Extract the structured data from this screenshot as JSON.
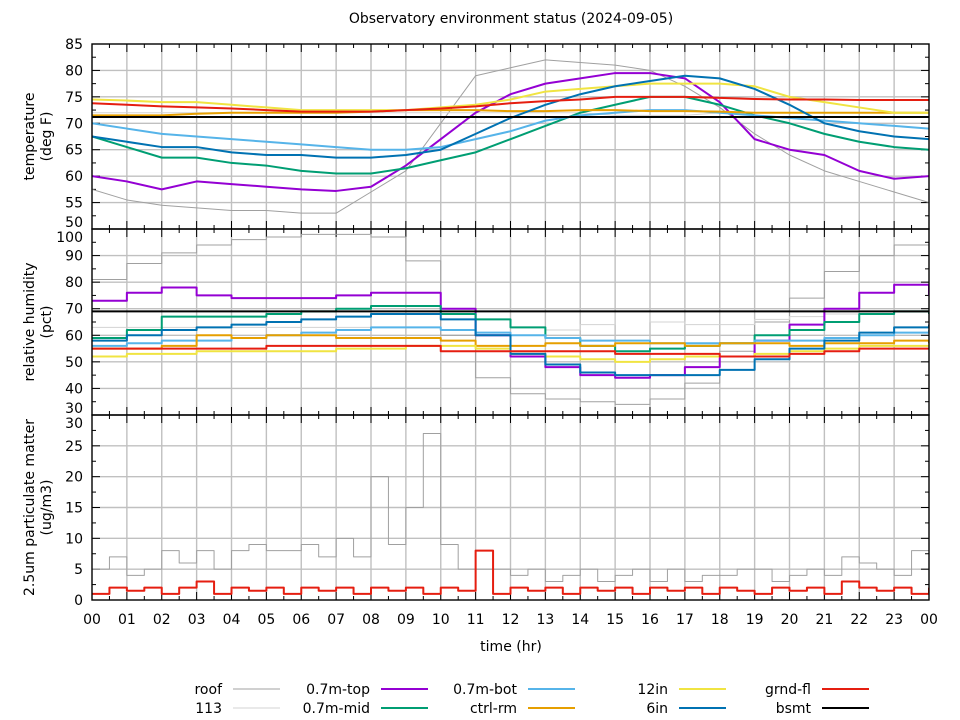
{
  "chart_data": {
    "type": "line",
    "title": "Observatory environment status (2024-09-05)",
    "xlabel": "time (hr)",
    "x_ticks": [
      "00",
      "01",
      "02",
      "03",
      "04",
      "05",
      "06",
      "07",
      "08",
      "09",
      "10",
      "11",
      "12",
      "13",
      "14",
      "15",
      "16",
      "17",
      "18",
      "19",
      "20",
      "21",
      "22",
      "23",
      "00"
    ],
    "x_range": [
      0,
      24
    ],
    "grid": true,
    "legend_position": "bottom",
    "legend": [
      {
        "name": "roof",
        "color": "#a0a0a0"
      },
      {
        "name": "113",
        "color": "#d3d3d3"
      },
      {
        "name": "0.7m-top",
        "color": "#9400d3"
      },
      {
        "name": "0.7m-mid",
        "color": "#009e73"
      },
      {
        "name": "0.7m-bot",
        "color": "#56b4e9"
      },
      {
        "name": "ctrl-rm",
        "color": "#e69f00"
      },
      {
        "name": "12in",
        "color": "#f0e442"
      },
      {
        "name": "6in",
        "color": "#0072b2"
      },
      {
        "name": "grnd-fl",
        "color": "#e51e10"
      },
      {
        "name": "bsmt",
        "color": "#000000"
      }
    ],
    "panels": [
      {
        "ylabel_line1": "temperature",
        "ylabel_line2": "(deg F)",
        "ylim": [
          50,
          85
        ],
        "y_ticks": [
          "50",
          "55",
          "60",
          "65",
          "70",
          "75",
          "80",
          "85"
        ],
        "x": [
          0,
          1,
          2,
          3,
          4,
          5,
          6,
          7,
          8,
          9,
          10,
          11,
          12,
          13,
          14,
          15,
          16,
          17,
          18,
          19,
          20,
          21,
          22,
          23,
          24
        ],
        "series": [
          {
            "name": "roof",
            "values": [
              57.5,
              55.5,
              54.5,
              54,
              53.5,
              53.5,
              53,
              53,
              57,
              61,
              70,
              79,
              80.5,
              82,
              81.5,
              81,
              80,
              77,
              73,
              68,
              64,
              61,
              59,
              57,
              55
            ]
          },
          {
            "name": "113",
            "values": [
              72,
              72,
              72,
              72,
              72,
              72,
              72,
              72,
              72,
              72,
              72,
              72,
              72,
              72,
              72,
              71.5,
              71.5,
              71.5,
              72,
              72,
              72,
              72,
              72,
              72,
              72
            ]
          },
          {
            "name": "0.7m-top",
            "values": [
              60,
              59,
              57.5,
              59,
              58.5,
              58,
              57.5,
              57.2,
              58,
              62,
              67,
              72,
              75.5,
              77.5,
              78.5,
              79.5,
              79.5,
              78.5,
              74,
              67,
              65,
              64,
              61,
              59.5,
              60
            ]
          },
          {
            "name": "0.7m-mid",
            "values": [
              67.5,
              65.5,
              63.5,
              63.5,
              62.5,
              62,
              61,
              60.5,
              60.5,
              61.5,
              63,
              64.5,
              67,
              69.5,
              72,
              73.5,
              75,
              75,
              73.5,
              71.5,
              70,
              68,
              66.5,
              65.5,
              65
            ]
          },
          {
            "name": "0.7m-bot",
            "values": [
              70,
              69,
              68,
              67.5,
              67,
              66.5,
              66,
              65.5,
              65,
              65,
              65.5,
              67,
              68.5,
              70.5,
              71.5,
              72,
              72.5,
              72.5,
              72,
              71.5,
              71,
              70.5,
              70,
              69.5,
              69
            ]
          },
          {
            "name": "ctrl-rm",
            "values": [
              71.5,
              71.5,
              71.5,
              71.8,
              72,
              72,
              72,
              72,
              72.2,
              72.5,
              72.5,
              72.5,
              72.3,
              72.3,
              72.5,
              72.5,
              72.3,
              72.3,
              72.2,
              72,
              72,
              72,
              72,
              72,
              72
            ]
          },
          {
            "name": "12in",
            "values": [
              74.5,
              74.3,
              74,
              74,
              73.5,
              73,
              72.5,
              72.5,
              72.5,
              72.5,
              73,
              73.5,
              74.5,
              76,
              76.5,
              77,
              77.5,
              77.5,
              77.5,
              77,
              75,
              74,
              73,
              72,
              72
            ]
          },
          {
            "name": "6in",
            "values": [
              67.5,
              66.5,
              65.5,
              65.5,
              64.5,
              64,
              64,
              63.5,
              63.5,
              64,
              65,
              68,
              71,
              73.5,
              75.5,
              77,
              78,
              79,
              78.5,
              76.5,
              73.5,
              70,
              68.5,
              67.5,
              67
            ]
          },
          {
            "name": "grnd-fl",
            "values": [
              73.8,
              73.5,
              73.2,
              73,
              72.8,
              72.5,
              72.2,
              72.2,
              72.2,
              72.5,
              72.8,
              73.2,
              73.8,
              74.2,
              74.5,
              75,
              75,
              75,
              74.8,
              74.6,
              74.5,
              74.5,
              74.4,
              74.4,
              74.4
            ]
          },
          {
            "name": "bsmt",
            "values": [
              71.2,
              71.2,
              71.2,
              71.2,
              71.2,
              71.2,
              71.2,
              71.2,
              71.2,
              71.2,
              71.2,
              71.2,
              71.2,
              71.2,
              71.2,
              71.2,
              71.2,
              71.2,
              71.2,
              71.2,
              71.2,
              71.2,
              71.2,
              71.2,
              71.2
            ]
          }
        ]
      },
      {
        "ylabel_line1": "relative humidity",
        "ylabel_line2": "(pct)",
        "ylim": [
          30,
          100
        ],
        "y_ticks": [
          "30",
          "40",
          "50",
          "60",
          "70",
          "80",
          "90",
          "100"
        ],
        "x": [
          0,
          1,
          2,
          3,
          4,
          5,
          6,
          7,
          8,
          9,
          10,
          11,
          12,
          13,
          14,
          15,
          16,
          17,
          18,
          19,
          20,
          21,
          22,
          23,
          24
        ],
        "series": [
          {
            "name": "roof",
            "values": [
              81,
              87,
              91,
              94,
              96,
              97,
              98,
              98,
              97,
              88,
              60,
              44,
              38,
              36,
              35,
              34,
              36,
              42,
              54,
              65,
              74,
              84,
              90,
              94,
              98
            ]
          },
          {
            "name": "113",
            "values": [
              63,
              63,
              63,
              63,
              63,
              63,
              63,
              63,
              63,
              63,
              62,
              61,
              60,
              62,
              64,
              69,
              65,
              64,
              64,
              66,
              67,
              68,
              69,
              69,
              69
            ]
          },
          {
            "name": "0.7m-top",
            "values": [
              73,
              76,
              78,
              75,
              74,
              74,
              74,
              75,
              76,
              76,
              70,
              60,
              52,
              48,
              45,
              44,
              45,
              48,
              52,
              58,
              64,
              70,
              76,
              79,
              75
            ]
          },
          {
            "name": "0.7m-mid",
            "values": [
              59,
              62,
              67,
              67,
              67,
              68,
              69,
              70,
              71,
              71,
              68,
              66,
              63,
              59,
              56,
              54,
              55,
              56,
              57,
              60,
              62,
              65,
              68,
              69,
              68
            ]
          },
          {
            "name": "0.7m-bot",
            "values": [
              56,
              57,
              58,
              58,
              59,
              60,
              61,
              62,
              63,
              63,
              62,
              61,
              60,
              59,
              58,
              58,
              57,
              57,
              57,
              58,
              58,
              59,
              60,
              61,
              62
            ]
          },
          {
            "name": "ctrl-rm",
            "values": [
              55,
              55,
              56,
              60,
              59,
              60,
              60,
              59,
              59,
              59,
              58,
              56,
              56,
              57,
              56,
              57,
              57,
              56,
              57,
              57,
              56,
              57,
              57,
              58,
              57
            ]
          },
          {
            "name": "12in",
            "values": [
              52,
              53,
              53,
              54,
              54,
              54,
              54,
              55,
              55,
              56,
              56,
              55,
              53,
              52,
              51,
              50,
              51,
              52,
              52,
              53,
              54,
              55,
              56,
              56,
              56
            ]
          },
          {
            "name": "6in",
            "values": [
              58,
              60,
              62,
              63,
              64,
              65,
              66,
              67,
              68,
              68,
              66,
              60,
              53,
              49,
              46,
              45,
              45,
              45,
              47,
              51,
              55,
              58,
              61,
              63,
              64
            ]
          },
          {
            "name": "grnd-fl",
            "values": [
              55,
              55,
              55,
              55,
              55,
              56,
              56,
              56,
              56,
              56,
              54,
              54,
              54,
              54,
              54,
              53,
              53,
              53,
              52,
              52,
              53,
              54,
              55,
              55,
              55
            ]
          },
          {
            "name": "bsmt",
            "values": [
              69,
              69,
              69,
              69,
              69,
              69,
              69,
              69,
              69,
              69,
              69,
              69,
              69,
              69,
              69,
              69,
              69,
              69,
              69,
              69,
              69,
              69,
              69,
              69,
              69
            ]
          }
        ]
      },
      {
        "ylabel_line1": "2.5um particulate matter",
        "ylabel_line2": "(ug/m3)",
        "ylim": [
          0,
          30
        ],
        "y_ticks": [
          "0",
          "5",
          "10",
          "15",
          "20",
          "25",
          "30"
        ],
        "x": [
          0,
          0.5,
          1,
          1.5,
          2,
          2.5,
          3,
          3.5,
          4,
          4.5,
          5,
          5.5,
          6,
          6.5,
          7,
          7.5,
          8,
          8.5,
          9,
          9.5,
          10,
          10.5,
          11,
          11.5,
          12,
          12.5,
          13,
          13.5,
          14,
          14.5,
          15,
          15.5,
          16,
          16.5,
          17,
          17.5,
          18,
          18.5,
          19,
          19.5,
          20,
          20.5,
          21,
          21.5,
          22,
          22.5,
          23,
          23.5,
          24
        ],
        "series": [
          {
            "name": "roof",
            "values": [
              5,
              7,
              4,
              5,
              8,
              6,
              8,
              5,
              8,
              9,
              8,
              8,
              9,
              7,
              10,
              7,
              20,
              9,
              15,
              27,
              9,
              5,
              5,
              5,
              4,
              5,
              3,
              4,
              5,
              3,
              4,
              5,
              3,
              5,
              3,
              4,
              4,
              5,
              5,
              3,
              4,
              5,
              4,
              7,
              6,
              5,
              4,
              8,
              7
            ]
          },
          {
            "name": "grnd-fl",
            "values": [
              1,
              2,
              1.5,
              2,
              1,
              2,
              3,
              1,
              2,
              1.5,
              2,
              1,
              2,
              1.5,
              2,
              1,
              2,
              1.5,
              2,
              1,
              2,
              1.5,
              8,
              1,
              2,
              1.5,
              2,
              1,
              2,
              1.5,
              2,
              1,
              2,
              1.5,
              2,
              1,
              2,
              1.5,
              1,
              2,
              1.5,
              2,
              1,
              3,
              2,
              1.5,
              2,
              1,
              2
            ]
          }
        ]
      }
    ]
  }
}
